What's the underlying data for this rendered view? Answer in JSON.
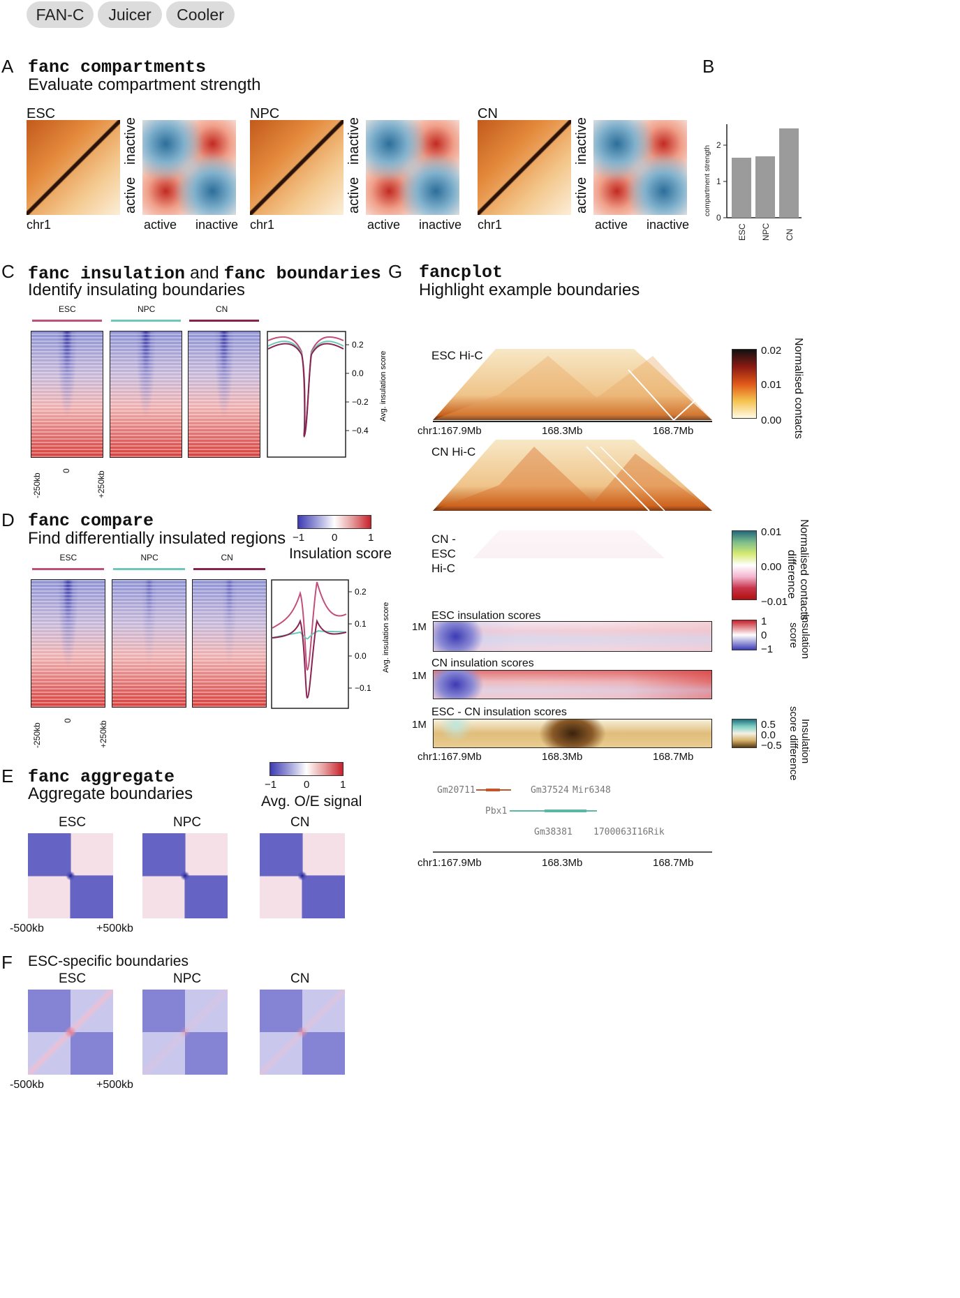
{
  "tabs": [
    "FAN-C",
    "Juicer",
    "Cooler"
  ],
  "panelA": {
    "letter": "A",
    "cmd": "fanc compartments",
    "sub": "Evaluate compartment strength",
    "samples": [
      "ESC",
      "NPC",
      "CN"
    ],
    "chr": "chr1",
    "active": "active",
    "inactive": "inactive"
  },
  "panelB": {
    "letter": "B",
    "ylabel": "compartment strength"
  },
  "panelC": {
    "letter": "C",
    "cmd1": "fanc insulation",
    "and": "and",
    "cmd2": "fanc boundaries",
    "sub": "Identify insulating boundaries",
    "samples": [
      "ESC",
      "NPC",
      "CN"
    ],
    "xticks": [
      "-250kb",
      "0",
      "+250kb"
    ],
    "ylabel": "Avg. insulation score"
  },
  "panelD": {
    "letter": "D",
    "cmd": "fanc compare",
    "sub": "Find differentially insulated regions",
    "samples": [
      "ESC",
      "NPC",
      "CN"
    ],
    "xticks": [
      "-250kb",
      "0",
      "+250kb"
    ],
    "ylabel": "Avg. insulation score",
    "legend_title": "Insulation score",
    "legend_ticks": [
      "−1",
      "0",
      "1"
    ]
  },
  "panelE": {
    "letter": "E",
    "cmd": "fanc aggregate",
    "sub": "Aggregate boundaries",
    "legend_title": "Avg. O/E signal",
    "legend_ticks": [
      "−1",
      "0",
      "1"
    ],
    "samples": [
      "ESC",
      "NPC",
      "CN"
    ],
    "xticks": [
      "-500kb",
      "+500kb"
    ]
  },
  "panelF": {
    "letter": "F",
    "sub": "ESC-specific boundaries",
    "samples": [
      "ESC",
      "NPC",
      "CN"
    ],
    "xticks": [
      "-500kb",
      "+500kb"
    ]
  },
  "panelG": {
    "letter": "G",
    "cmd": "fancplot",
    "sub": "Highlight example boundaries",
    "esc_hic": "ESC Hi-C",
    "cn_hic": "CN Hi-C",
    "diff_hic_lines": [
      "CN -",
      "ESC",
      "Hi-C"
    ],
    "xticks": [
      "chr1:167.9Mb",
      "168.3Mb",
      "168.7Mb"
    ],
    "cb1_ticks": [
      "0.02",
      "0.01",
      "0.00"
    ],
    "cb1_label": "Normalised contacts",
    "cb2_ticks": [
      "0.01",
      "0.00",
      "−0.01"
    ],
    "cb2_label_lines": [
      "Normalised contacts",
      "difference"
    ],
    "esc_ins": "ESC insulation scores",
    "cn_ins": "CN insulation scores",
    "diff_ins": "ESC - CN insulation scores",
    "track_tick": "1M",
    "cb3_ticks": [
      "1",
      "0",
      "−1"
    ],
    "cb3_label_lines": [
      "Insulation",
      "score"
    ],
    "cb4_ticks": [
      "0.5",
      "0.0",
      "−0.5"
    ],
    "cb4_label_lines": [
      "Insulation",
      "score difference"
    ],
    "genes": [
      "Gm20711",
      "Gm37524",
      "Mir6348",
      "Pbx1",
      "Gm38381",
      "1700063I16Rik"
    ]
  }
}
